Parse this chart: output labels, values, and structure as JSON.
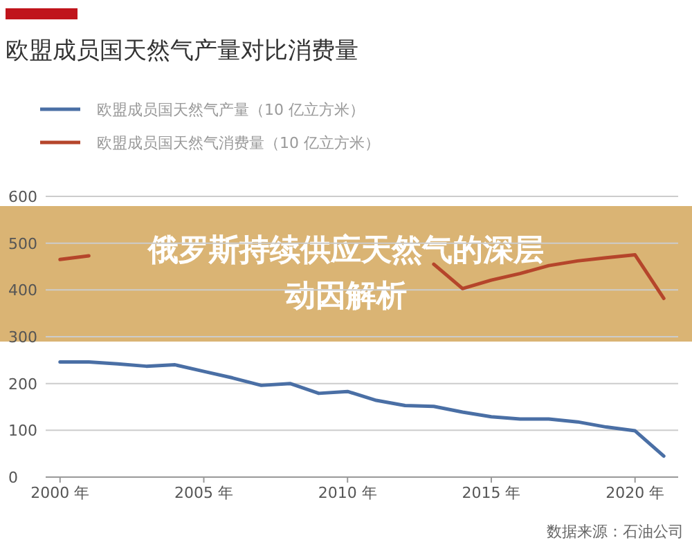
{
  "chart_data": {
    "type": "line",
    "title": "欧盟成员国天然气产量对比消费量",
    "x": [
      2000,
      2001,
      2002,
      2003,
      2004,
      2005,
      2006,
      2007,
      2008,
      2009,
      2010,
      2011,
      2012,
      2013,
      2014,
      2015,
      2016,
      2017,
      2018,
      2019,
      2020,
      2021
    ],
    "series": [
      {
        "name": "欧盟成员国天然气产量（10 亿立方米）",
        "color": "#4a6fa5",
        "values": [
          246,
          246,
          242,
          237,
          240,
          226,
          212,
          196,
          200,
          179,
          183,
          164,
          153,
          151,
          139,
          129,
          124,
          124,
          118,
          107,
          99,
          45
        ]
      },
      {
        "name": "欧盟成员国天然气消费量（10 亿立方米）",
        "color": "#b5452b",
        "values": [
          465,
          473,
          null,
          null,
          null,
          null,
          null,
          null,
          null,
          null,
          null,
          null,
          null,
          455,
          403,
          421,
          435,
          452,
          462,
          469,
          475,
          382
        ]
      }
    ],
    "xlim": [
      1999.5,
      2021.5
    ],
    "xticks": [
      {
        "value": 2000,
        "label": "2000 年"
      },
      {
        "value": 2005,
        "label": "2005 年"
      },
      {
        "value": 2010,
        "label": "2010 年"
      },
      {
        "value": 2015,
        "label": "2015 年"
      },
      {
        "value": 2020,
        "label": "2020 年"
      }
    ],
    "ylim": [
      0,
      600
    ],
    "yticks": [
      0,
      100,
      200,
      300,
      400,
      500,
      600
    ],
    "grid": "y",
    "legend": "top left",
    "marker": "none",
    "line_style": "solid",
    "annotations": [
      "俄罗斯持续供应天然气的深层动因解析",
      "数据来源：石油公司"
    ]
  }
}
